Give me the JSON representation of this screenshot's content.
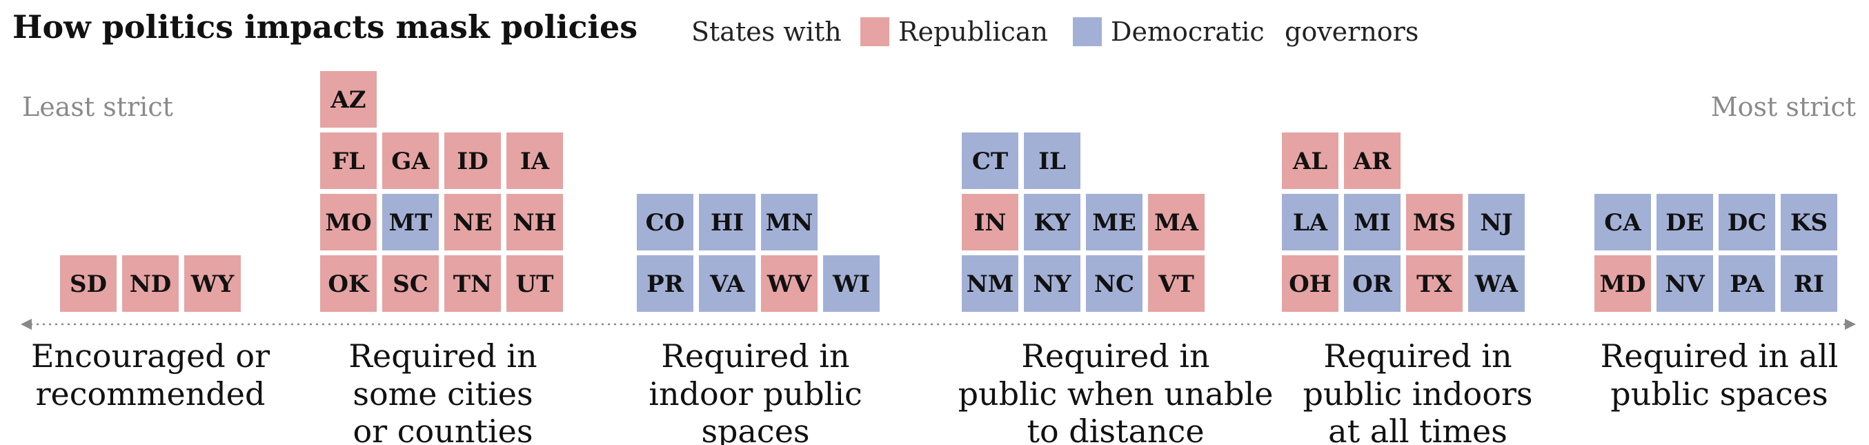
{
  "chart_data": {
    "type": "tile-grid",
    "title": "How politics impacts mask policies",
    "legend": {
      "prefix": "States with",
      "suffix": "governors",
      "entries": [
        {
          "key": "R",
          "label": "Republican",
          "color": "#e6a3a3"
        },
        {
          "key": "D",
          "label": "Democratic",
          "color": "#a3b0d6"
        }
      ]
    },
    "scale": {
      "left_label": "Least strict",
      "right_label": "Most strict"
    },
    "axis_color": "#888888",
    "categories": [
      {
        "label": [
          "Encouraged or",
          "recommended"
        ],
        "rows": [
          [
            [
              "SD",
              "R"
            ],
            [
              "ND",
              "R"
            ],
            [
              "WY",
              "R"
            ]
          ]
        ]
      },
      {
        "label": [
          "Required in",
          "some cities",
          "or counties"
        ],
        "rows": [
          [
            [
              "OK",
              "R"
            ],
            [
              "SC",
              "R"
            ],
            [
              "TN",
              "R"
            ],
            [
              "UT",
              "R"
            ]
          ],
          [
            [
              "MO",
              "R"
            ],
            [
              "MT",
              "D"
            ],
            [
              "NE",
              "R"
            ],
            [
              "NH",
              "R"
            ]
          ],
          [
            [
              "FL",
              "R"
            ],
            [
              "GA",
              "R"
            ],
            [
              "ID",
              "R"
            ],
            [
              "IA",
              "R"
            ]
          ],
          [
            [
              "AZ",
              "R"
            ]
          ]
        ]
      },
      {
        "label": [
          "Required in",
          "indoor public",
          "spaces"
        ],
        "rows": [
          [
            [
              "PR",
              "D"
            ],
            [
              "VA",
              "D"
            ],
            [
              "WV",
              "R"
            ],
            [
              "WI",
              "D"
            ]
          ],
          [
            [
              "CO",
              "D"
            ],
            [
              "HI",
              "D"
            ],
            [
              "MN",
              "D"
            ]
          ]
        ]
      },
      {
        "label": [
          "Required in",
          "public when unable",
          "to distance"
        ],
        "rows": [
          [
            [
              "NM",
              "D"
            ],
            [
              "NY",
              "D"
            ],
            [
              "NC",
              "D"
            ],
            [
              "VT",
              "R"
            ]
          ],
          [
            [
              "IN",
              "R"
            ],
            [
              "KY",
              "D"
            ],
            [
              "ME",
              "D"
            ],
            [
              "MA",
              "R"
            ]
          ],
          [
            [
              "CT",
              "D"
            ],
            [
              "IL",
              "D"
            ]
          ]
        ]
      },
      {
        "label": [
          "Required in",
          "public indoors",
          "at all times"
        ],
        "rows": [
          [
            [
              "OH",
              "R"
            ],
            [
              "OR",
              "D"
            ],
            [
              "TX",
              "R"
            ],
            [
              "WA",
              "D"
            ]
          ],
          [
            [
              "LA",
              "D"
            ],
            [
              "MI",
              "D"
            ],
            [
              "MS",
              "R"
            ],
            [
              "NJ",
              "D"
            ]
          ],
          [
            [
              "AL",
              "R"
            ],
            [
              "AR",
              "R"
            ]
          ]
        ]
      },
      {
        "label": [
          "Required in all",
          "public spaces"
        ],
        "rows": [
          [
            [
              "MD",
              "R"
            ],
            [
              "NV",
              "D"
            ],
            [
              "PA",
              "D"
            ],
            [
              "RI",
              "D"
            ]
          ],
          [
            [
              "CA",
              "D"
            ],
            [
              "DE",
              "D"
            ],
            [
              "DC",
              "D"
            ],
            [
              "KS",
              "D"
            ]
          ]
        ]
      }
    ]
  }
}
